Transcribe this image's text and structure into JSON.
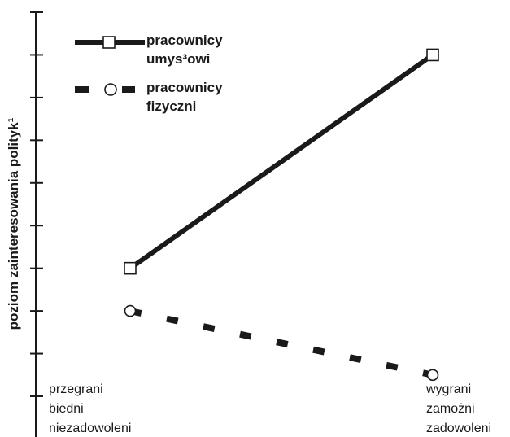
{
  "chart_data": {
    "type": "line",
    "title": "",
    "xlabel": "",
    "ylabel": "poziom zainteresowania polityk¹",
    "categories": [
      [
        "przegrani",
        "biedni",
        "niezadowoleni"
      ],
      [
        "wygrani",
        "zamożni",
        "zadowoleni"
      ]
    ],
    "ylim": [
      0,
      9
    ],
    "y_ticks": [
      0,
      1,
      2,
      3,
      4,
      5,
      6,
      7,
      8,
      9
    ],
    "grid": false,
    "legend_position": "top-left",
    "series": [
      {
        "name": [
          "pracownicy",
          "umys³owi"
        ],
        "values": [
          3.0,
          8.0
        ],
        "style": "solid",
        "marker": "square",
        "color": "#1a1a1a"
      },
      {
        "name": [
          "pracownicy",
          "fizyczni"
        ],
        "values": [
          2.0,
          0.5
        ],
        "style": "dashed",
        "marker": "circle",
        "color": "#1a1a1a"
      }
    ]
  }
}
